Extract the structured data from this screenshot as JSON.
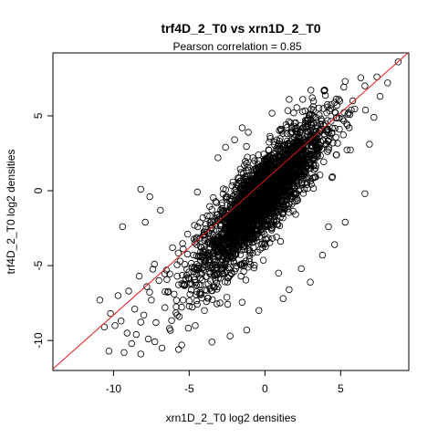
{
  "chart_data": {
    "type": "scatter",
    "title": "trf4D_2_T0 vs xrn1D_2_T0",
    "subtitle": "Pearson correlation =  0.85",
    "xlabel": "xrn1D_2_T0 log2 densities",
    "ylabel": "trf4D_2_T0 log2 densities",
    "xlim": [
      -14,
      9.5
    ],
    "ylim": [
      -12,
      9.2
    ],
    "xticks": [
      -10,
      -5,
      0,
      5
    ],
    "yticks": [
      -10,
      -5,
      0,
      5
    ],
    "xtick_labels": [
      "-10",
      "-5",
      "0",
      "5"
    ],
    "ytick_labels": [
      "-10",
      "-5",
      "0",
      "5"
    ],
    "grid": false,
    "legend": "none",
    "fit_line": {
      "intercept": 0.7,
      "slope": 0.9,
      "color": "#e41a1c"
    },
    "point_style": "open-circle",
    "dense_cluster": {
      "description_center": [
        -0.3,
        -0.6
      ],
      "spread_x": 2.1,
      "correlation": 0.85
    },
    "points": [
      [
        -10.9,
        -7.3
      ],
      [
        -10.6,
        -9.1
      ],
      [
        -10.3,
        -10.7
      ],
      [
        -10.2,
        -8.2
      ],
      [
        -9.9,
        -9.0
      ],
      [
        -9.7,
        -7.0
      ],
      [
        -9.5,
        -8.7
      ],
      [
        -9.3,
        -10.8
      ],
      [
        -9.1,
        -9.5
      ],
      [
        -9.0,
        -6.7
      ],
      [
        -8.8,
        -10.2
      ],
      [
        -8.6,
        -7.9
      ],
      [
        -8.5,
        -9.6
      ],
      [
        -8.3,
        -5.7
      ],
      [
        -8.2,
        -10.9
      ],
      [
        -8.0,
        -8.3
      ],
      [
        -7.8,
        -6.4
      ],
      [
        -7.7,
        -9.9
      ],
      [
        -7.5,
        -7.3
      ],
      [
        -7.3,
        -4.9
      ],
      [
        -7.2,
        -8.8
      ],
      [
        -7.0,
        -6.0
      ],
      [
        -6.8,
        -10.5
      ],
      [
        -6.6,
        -7.8
      ],
      [
        -6.5,
        -5.3
      ],
      [
        -6.3,
        -9.2
      ],
      [
        -6.1,
        -3.8
      ],
      [
        -6.0,
        -6.9
      ],
      [
        -5.8,
        -8.3
      ],
      [
        -5.6,
        -4.7
      ],
      [
        -5.5,
        -10.3
      ],
      [
        -5.3,
        -6.3
      ],
      [
        -5.1,
        -2.9
      ],
      [
        -5.0,
        -7.7
      ],
      [
        -4.8,
        -5.1
      ],
      [
        -4.6,
        -9.0
      ],
      [
        -4.5,
        -3.6
      ],
      [
        -4.3,
        -6.8
      ],
      [
        -4.1,
        -1.8
      ],
      [
        -4.0,
        -8.0
      ],
      [
        -8.2,
        0.1
      ],
      [
        -7.6,
        -0.4
      ],
      [
        -9.4,
        -2.4
      ],
      [
        -6.9,
        -1.3
      ],
      [
        -7.9,
        -2.1
      ],
      [
        -2.6,
        2.9
      ],
      [
        -2.0,
        3.4
      ],
      [
        -1.5,
        4.2
      ],
      [
        -3.1,
        2.2
      ],
      [
        -1.1,
        3.9
      ],
      [
        0.9,
        -5.5
      ],
      [
        1.6,
        -6.6
      ],
      [
        2.4,
        -5.2
      ],
      [
        3.0,
        -6.1
      ],
      [
        1.2,
        -7.2
      ],
      [
        3.8,
        -4.3
      ],
      [
        4.6,
        -3.6
      ],
      [
        4.2,
        -2.4
      ],
      [
        5.3,
        -2.1
      ],
      [
        6.6,
        -0.2
      ],
      [
        6.9,
        3.1
      ],
      [
        7.2,
        4.9
      ],
      [
        7.6,
        6.3
      ],
      [
        8.1,
        7.2
      ],
      [
        8.8,
        8.6
      ],
      [
        7.4,
        7.6
      ],
      [
        6.6,
        7.0
      ],
      [
        5.8,
        6.0
      ],
      [
        5.3,
        7.3
      ],
      [
        4.6,
        5.9
      ],
      [
        3.9,
        6.7
      ],
      [
        3.2,
        5.4
      ],
      [
        2.5,
        6.1
      ],
      [
        1.9,
        5.2
      ],
      [
        1.6,
        6.1
      ],
      [
        -0.4,
        -8.0
      ],
      [
        -1.2,
        -9.3
      ],
      [
        -2.3,
        -9.7
      ],
      [
        -3.5,
        -10.1
      ],
      [
        -5.7,
        -10.6
      ]
    ]
  }
}
